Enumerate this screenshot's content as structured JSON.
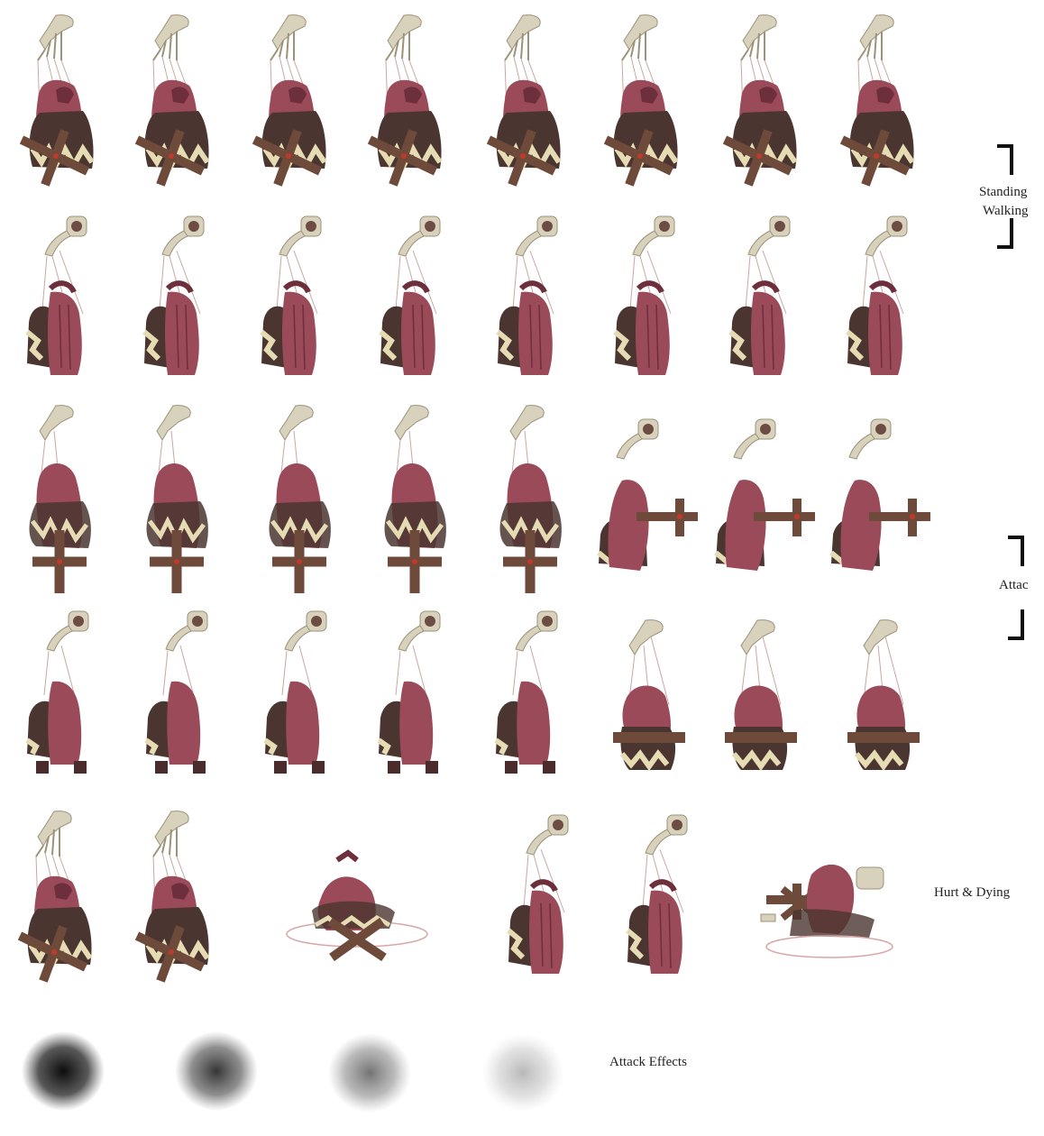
{
  "sheet": {
    "labels": {
      "standing": "Standing",
      "walking": "Walking",
      "attack": "Attac",
      "hurt_dying": "Hurt & Dying",
      "attack_effects": "Attack Effects"
    },
    "colors": {
      "background": "#ffffff",
      "hand": "#d8d2bd",
      "hand_shadow": "#9c9278",
      "hair": "#9a4a58",
      "hair_dark": "#6e2f3c",
      "dress": "#4a3530",
      "lace": "#e6dcb4",
      "cross": "#6e4a3a",
      "string": "#c7a7a0",
      "bracket": "#111111"
    },
    "rows": [
      {
        "animation": "standing-front",
        "frames": 8
      },
      {
        "animation": "walking-back",
        "frames": 8
      },
      {
        "animation": "attack-front",
        "frames": 8
      },
      {
        "animation": "attack-back",
        "frames": 8
      },
      {
        "animation": "hurt-and-dying",
        "frames": 6
      },
      {
        "animation": "attack-effects",
        "frames": 4
      }
    ]
  }
}
